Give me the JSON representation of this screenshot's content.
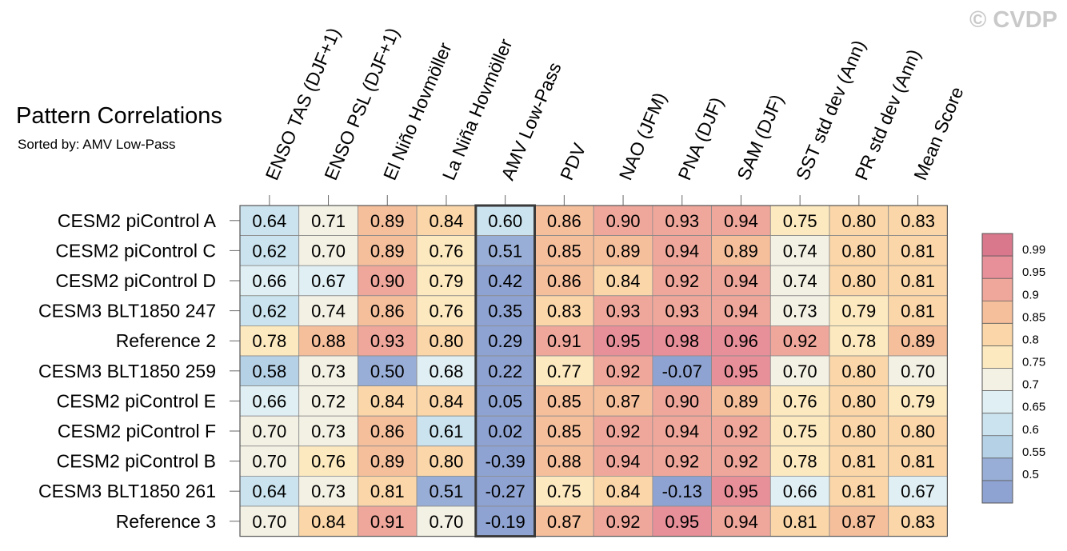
{
  "watermark": "© CVDP",
  "chart_data": {
    "type": "heatmap",
    "title": "Pattern Correlations",
    "subtitle": "Sorted by: AMV Low-Pass",
    "highlight_column": "AMV Low-Pass",
    "columns": [
      "ENSO TAS (DJF+1)",
      "ENSO PSL (DJF+1)",
      "El Niño Hovmöller",
      "La Niña Hovmöller",
      "AMV Low-Pass",
      "PDV",
      "NAO (JFM)",
      "PNA (DJF)",
      "SAM (DJF)",
      "SST std dev (Ann)",
      "PR std dev (Ann)",
      "Mean Score"
    ],
    "rows": [
      "CESM2 piControl A",
      "CESM2 piControl C",
      "CESM2 piControl D",
      "CESM3 BLT1850 247",
      "Reference 2",
      "CESM3 BLT1850 259",
      "CESM2 piControl E",
      "CESM2 piControl F",
      "CESM2 piControl B",
      "CESM3 BLT1850 261",
      "Reference 3"
    ],
    "cells": [
      [
        "0.64",
        "0.71",
        "0.89",
        "0.84",
        "0.60",
        "0.86",
        "0.90",
        "0.93",
        "0.94",
        "0.75",
        "0.80",
        "0.83"
      ],
      [
        "0.62",
        "0.70",
        "0.89",
        "0.76",
        "0.51",
        "0.85",
        "0.89",
        "0.94",
        "0.89",
        "0.74",
        "0.80",
        "0.81"
      ],
      [
        "0.66",
        "0.67",
        "0.90",
        "0.79",
        "0.42",
        "0.86",
        "0.84",
        "0.92",
        "0.94",
        "0.74",
        "0.80",
        "0.81"
      ],
      [
        "0.62",
        "0.74",
        "0.86",
        "0.76",
        "0.35",
        "0.83",
        "0.93",
        "0.93",
        "0.94",
        "0.73",
        "0.79",
        "0.81"
      ],
      [
        "0.78",
        "0.88",
        "0.93",
        "0.80",
        "0.29",
        "0.91",
        "0.95",
        "0.98",
        "0.96",
        "0.92",
        "0.78",
        "0.89"
      ],
      [
        "0.58",
        "0.73",
        "0.50",
        "0.68",
        "0.22",
        "0.77",
        "0.92",
        "-0.07",
        "0.95",
        "0.70",
        "0.80",
        "0.70"
      ],
      [
        "0.66",
        "0.72",
        "0.84",
        "0.84",
        "0.05",
        "0.85",
        "0.87",
        "0.90",
        "0.89",
        "0.76",
        "0.80",
        "0.79"
      ],
      [
        "0.70",
        "0.73",
        "0.86",
        "0.61",
        "0.02",
        "0.85",
        "0.92",
        "0.94",
        "0.92",
        "0.75",
        "0.80",
        "0.80"
      ],
      [
        "0.70",
        "0.76",
        "0.89",
        "0.80",
        "-0.39",
        "0.88",
        "0.94",
        "0.92",
        "0.92",
        "0.78",
        "0.81",
        "0.81"
      ],
      [
        "0.64",
        "0.73",
        "0.81",
        "0.51",
        "-0.27",
        "0.75",
        "0.84",
        "-0.13",
        "0.95",
        "0.66",
        "0.81",
        "0.67"
      ],
      [
        "0.70",
        "0.84",
        "0.91",
        "0.70",
        "-0.19",
        "0.87",
        "0.92",
        "0.95",
        "0.94",
        "0.81",
        "0.87",
        "0.83"
      ]
    ],
    "colorbar": {
      "labels": [
        "0.99",
        "0.95",
        "0.9",
        "0.85",
        "0.8",
        "0.75",
        "0.7",
        "0.65",
        "0.6",
        "0.55",
        "0.5"
      ],
      "colors": [
        "#d9788c",
        "#e8909a",
        "#f0a79b",
        "#f6bf9c",
        "#fad6a8",
        "#fce9bf",
        "#f3f1e4",
        "#e0eff3",
        "#cae3ee",
        "#b5d1e6",
        "#99aed6",
        "#8fa3d2"
      ]
    }
  }
}
